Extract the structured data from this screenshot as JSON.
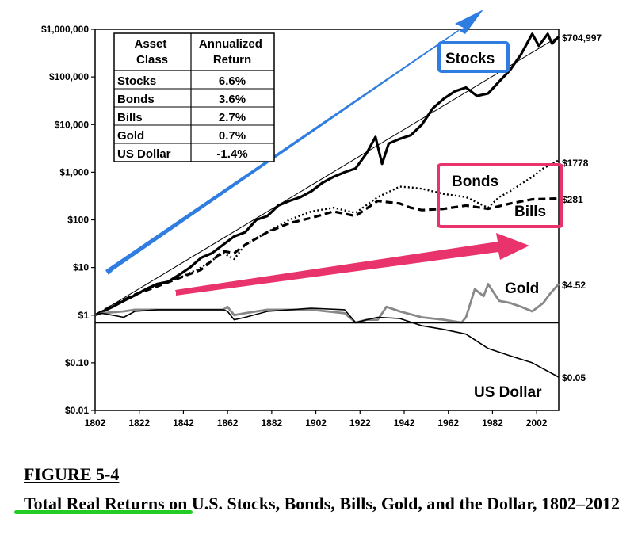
{
  "figure": {
    "number": "FIGURE 5-4",
    "title_lead": "Total Real Returns",
    "title_rest": " on U.S. Stocks, Bonds, Bills, Gold, and the Dollar, 1802–2012"
  },
  "colors": {
    "stocks_highlight": "#2f7de1",
    "bonds_highlight": "#e8336d",
    "gold_line": "#888888",
    "green_underline": "#22cc22"
  },
  "table": {
    "headers": [
      "Asset Class",
      "Annualized Return"
    ],
    "rows": [
      [
        "Stocks",
        "6.6%"
      ],
      [
        "Bonds",
        "3.6%"
      ],
      [
        "Bills",
        "2.7%"
      ],
      [
        "Gold",
        "0.7%"
      ],
      [
        "US Dollar",
        "-1.4%"
      ]
    ]
  },
  "chart_data": {
    "type": "line",
    "scale": "log",
    "ylim": [
      0.01,
      1000000
    ],
    "xlim": [
      1802,
      2012
    ],
    "yticks": [
      {
        "value": 1000000,
        "label": "$1,000,000"
      },
      {
        "value": 100000,
        "label": "$100,000"
      },
      {
        "value": 10000,
        "label": "$10,000"
      },
      {
        "value": 1000,
        "label": "$1,000"
      },
      {
        "value": 100,
        "label": "$100"
      },
      {
        "value": 10,
        "label": "$10"
      },
      {
        "value": 1,
        "label": "$1"
      },
      {
        "value": 0.1,
        "label": "$0.10"
      },
      {
        "value": 0.01,
        "label": "$0.01"
      }
    ],
    "xticks": [
      1802,
      1822,
      1842,
      1862,
      1882,
      1902,
      1922,
      1942,
      1962,
      1982,
      2002
    ],
    "grid": false,
    "series": [
      {
        "name": "Stocks",
        "end_label": "$704,997",
        "color": "#000000",
        "x": [
          1802,
          1810,
          1815,
          1820,
          1825,
          1830,
          1835,
          1840,
          1845,
          1850,
          1855,
          1860,
          1865,
          1870,
          1875,
          1880,
          1885,
          1890,
          1895,
          1900,
          1905,
          1910,
          1915,
          1920,
          1925,
          1929,
          1932,
          1935,
          1940,
          1945,
          1950,
          1955,
          1960,
          1965,
          1970,
          1975,
          1980,
          1985,
          1990,
          1995,
          2000,
          2003,
          2007,
          2009,
          2012
        ],
        "y": [
          1,
          1.5,
          2,
          2.6,
          3.5,
          4.5,
          5,
          7,
          10,
          16,
          20,
          30,
          45,
          55,
          100,
          120,
          200,
          250,
          300,
          400,
          600,
          800,
          1000,
          1200,
          2500,
          5500,
          1500,
          4000,
          5000,
          6000,
          10000,
          22000,
          35000,
          50000,
          60000,
          40000,
          45000,
          80000,
          140000,
          300000,
          800000,
          450000,
          800000,
          500000,
          705000
        ]
      },
      {
        "name": "Bonds",
        "end_label": "$1778",
        "color": "#000000",
        "x": [
          1802,
          1810,
          1820,
          1830,
          1840,
          1850,
          1860,
          1865,
          1870,
          1880,
          1890,
          1900,
          1910,
          1920,
          1930,
          1940,
          1945,
          1950,
          1960,
          1970,
          1980,
          1985,
          1990,
          2000,
          2005,
          2012
        ],
        "y": [
          1,
          1.6,
          2.7,
          4.3,
          6,
          10,
          20,
          15,
          30,
          55,
          100,
          150,
          180,
          140,
          300,
          500,
          480,
          450,
          350,
          300,
          180,
          300,
          400,
          800,
          1200,
          1778
        ]
      },
      {
        "name": "Bills",
        "end_label": "$281",
        "color": "#000000",
        "x": [
          1802,
          1810,
          1820,
          1830,
          1840,
          1850,
          1860,
          1865,
          1870,
          1880,
          1890,
          1900,
          1910,
          1920,
          1930,
          1940,
          1945,
          1950,
          1960,
          1970,
          1980,
          1990,
          2000,
          2012
        ],
        "y": [
          1,
          1.6,
          2.7,
          4,
          6,
          9,
          22,
          20,
          30,
          55,
          85,
          110,
          150,
          120,
          250,
          220,
          180,
          160,
          170,
          200,
          170,
          220,
          270,
          281
        ]
      },
      {
        "name": "Gold",
        "end_label": "$4.52",
        "color": "#888888",
        "x": [
          1802,
          1805,
          1815,
          1820,
          1830,
          1840,
          1850,
          1860,
          1862,
          1865,
          1870,
          1880,
          1900,
          1915,
          1920,
          1925,
          1930,
          1934,
          1940,
          1950,
          1960,
          1968,
          1970,
          1974,
          1978,
          1980,
          1985,
          1990,
          1995,
          2000,
          2005,
          2008,
          2012
        ],
        "y": [
          1,
          1.1,
          1.2,
          1.3,
          1.3,
          1.3,
          1.3,
          1.3,
          1.5,
          1.0,
          1.1,
          1.3,
          1.3,
          1.1,
          0.7,
          0.8,
          0.8,
          1.5,
          1.2,
          0.9,
          0.8,
          0.7,
          0.9,
          3.5,
          2.5,
          4.5,
          2.0,
          1.8,
          1.5,
          1.2,
          1.8,
          2.8,
          4.52
        ]
      },
      {
        "name": "US Dollar",
        "end_label": "$0.05",
        "color": "#000000",
        "x": [
          1802,
          1805,
          1815,
          1820,
          1830,
          1840,
          1850,
          1860,
          1862,
          1865,
          1870,
          1880,
          1900,
          1915,
          1920,
          1925,
          1930,
          1940,
          1950,
          1960,
          1970,
          1980,
          1990,
          2000,
          2012
        ],
        "y": [
          1,
          1.1,
          0.9,
          1.2,
          1.3,
          1.3,
          1.3,
          1.3,
          1.2,
          0.8,
          0.9,
          1.2,
          1.4,
          1.3,
          0.7,
          0.8,
          0.9,
          0.85,
          0.6,
          0.5,
          0.4,
          0.2,
          0.14,
          0.1,
          0.05
        ]
      },
      {
        "name": "",
        "color": "#000000",
        "x": [
          1802,
          2012
        ],
        "y": [
          0.7,
          0.7
        ]
      },
      {
        "name": "",
        "color": "#000000",
        "x": [
          1802,
          2012
        ],
        "y": [
          1,
          705000
        ]
      }
    ],
    "annotations": [
      {
        "text": "Stocks",
        "box_color": "#2f7de1"
      },
      {
        "text": "Bonds",
        "box_color": "#e8336d"
      },
      {
        "text": "Bills",
        "box_color": "#e8336d"
      },
      {
        "text": "Gold"
      },
      {
        "text": "US Dollar"
      }
    ]
  }
}
